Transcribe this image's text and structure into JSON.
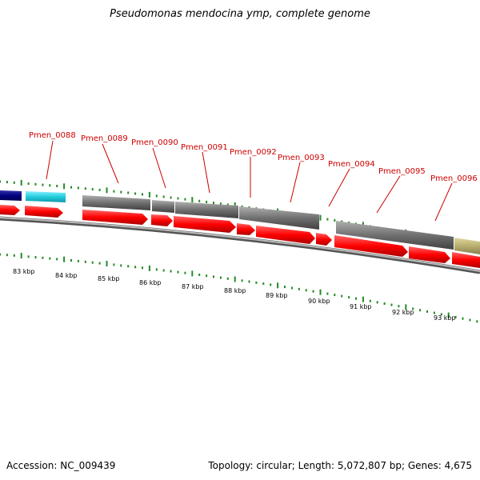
{
  "title": "Pseudomonas mendocina ymp, complete genome",
  "footer": {
    "accession": "Accession: NC_009439",
    "summary": "Topology: circular; Length: 5,072,807 bp; Genes: 4,675"
  },
  "gene_labels": [
    "Pmen_0088",
    "Pmen_0089",
    "Pmen_0090",
    "Pmen_0091",
    "Pmen_0092",
    "Pmen_0093",
    "Pmen_0094",
    "Pmen_0095",
    "Pmen_0096"
  ],
  "kbp_labels": [
    "83 kbp",
    "84 kbp",
    "85 kbp",
    "86 kbp",
    "87 kbp",
    "88 kbp",
    "89 kbp",
    "90 kbp",
    "91 kbp",
    "92 kbp",
    "93 kbp"
  ],
  "colors": {
    "cds_forward": "#ff0000",
    "gene_gray": "#707070",
    "navy_feature": "#000080",
    "cyan_feature": "#22ccdd",
    "khaki_feature": "#b8ae70",
    "tick_green": "#228b22",
    "backbone": "#888888",
    "label_red": "#cc0000"
  }
}
